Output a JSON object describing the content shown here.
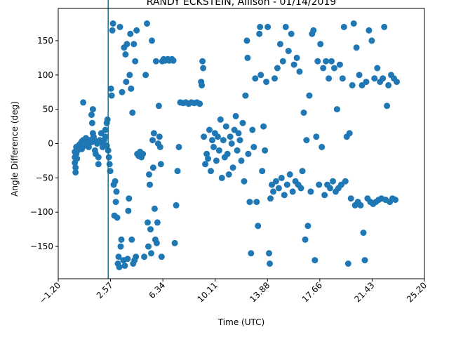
{
  "chart_data": {
    "type": "scatter",
    "title": "RANDY ECKSTEIN, Allison - 01/14/2019",
    "xlabel": "Time (UTC)",
    "ylabel": "Angle Difference (deg)",
    "xlim": [
      -1.2,
      25.2
    ],
    "ylim": [
      -197,
      197
    ],
    "xticks": [
      "-1.20",
      "2.57",
      "6.34",
      "10.11",
      "13.88",
      "17.66",
      "21.43",
      "25.20"
    ],
    "yticks": [
      -150,
      -100,
      -50,
      0,
      50,
      100,
      150
    ],
    "marker_color": "#1f77b4",
    "vline_x": 2.4,
    "vline_color": "#1f6f8b",
    "grid": false,
    "series": [
      {
        "points": [
          [
            0.0,
            -12
          ],
          [
            0.0,
            -20
          ],
          [
            0.0,
            -28
          ],
          [
            0.05,
            -35
          ],
          [
            0.05,
            -42
          ],
          [
            0.1,
            -15
          ],
          [
            0.1,
            -5
          ],
          [
            0.15,
            -22
          ],
          [
            0.2,
            -10
          ],
          [
            0.3,
            -2
          ],
          [
            0.4,
            0
          ],
          [
            0.5,
            3
          ],
          [
            0.5,
            -8
          ],
          [
            0.6,
            5
          ],
          [
            0.6,
            60
          ],
          [
            0.7,
            2
          ],
          [
            0.7,
            -3
          ],
          [
            0.8,
            8
          ],
          [
            0.9,
            0
          ],
          [
            1.0,
            -5
          ],
          [
            1.1,
            5
          ],
          [
            1.2,
            2
          ],
          [
            1.2,
            42
          ],
          [
            1.25,
            30
          ],
          [
            1.3,
            50
          ],
          [
            1.3,
            15
          ],
          [
            1.35,
            10
          ],
          [
            1.4,
            5
          ],
          [
            1.45,
            -10
          ],
          [
            1.5,
            -15
          ],
          [
            1.6,
            0
          ],
          [
            1.7,
            -20
          ],
          [
            1.7,
            -30
          ],
          [
            1.8,
            5
          ],
          [
            1.9,
            15
          ],
          [
            2.0,
            -5
          ],
          [
            2.0,
            0
          ],
          [
            2.1,
            5
          ],
          [
            2.2,
            10
          ],
          [
            2.2,
            20
          ],
          [
            2.3,
            -3
          ],
          [
            2.3,
            30
          ],
          [
            2.35,
            35
          ],
          [
            2.4,
            -10
          ],
          [
            2.45,
            -20
          ],
          [
            2.5,
            -30
          ],
          [
            2.55,
            -40
          ],
          [
            2.6,
            80
          ],
          [
            2.65,
            70
          ],
          [
            2.7,
            165
          ],
          [
            2.75,
            175
          ],
          [
            2.8,
            -60
          ],
          [
            2.85,
            -105
          ],
          [
            2.9,
            -55
          ],
          [
            2.95,
            -85
          ],
          [
            3.0,
            -70
          ],
          [
            3.05,
            -108
          ],
          [
            3.1,
            -175
          ],
          [
            3.15,
            -165
          ],
          [
            3.2,
            -180
          ],
          [
            3.25,
            170
          ],
          [
            3.3,
            -150
          ],
          [
            3.35,
            -140
          ],
          [
            3.4,
            75
          ],
          [
            3.5,
            -170
          ],
          [
            3.55,
            140
          ],
          [
            3.6,
            -178
          ],
          [
            3.65,
            130
          ],
          [
            3.7,
            90
          ],
          [
            3.75,
            145
          ],
          [
            3.8,
            -168
          ],
          [
            3.85,
            -98
          ],
          [
            3.9,
            -80
          ],
          [
            3.95,
            100
          ],
          [
            4.0,
            160
          ],
          [
            4.05,
            80
          ],
          [
            4.1,
            -140
          ],
          [
            4.15,
            45
          ],
          [
            4.2,
            -175
          ],
          [
            4.25,
            145
          ],
          [
            4.3,
            -170
          ],
          [
            4.35,
            120
          ],
          [
            4.4,
            -165
          ],
          [
            4.45,
            165
          ],
          [
            4.5,
            -15
          ],
          [
            4.6,
            -18
          ],
          [
            4.7,
            -12
          ],
          [
            4.8,
            -20
          ],
          [
            4.9,
            -15
          ],
          [
            5.0,
            -165
          ],
          [
            5.1,
            100
          ],
          [
            5.2,
            175
          ],
          [
            5.25,
            -115
          ],
          [
            5.3,
            -150
          ],
          [
            5.35,
            -45
          ],
          [
            5.4,
            -60
          ],
          [
            5.45,
            -125
          ],
          [
            5.5,
            -160
          ],
          [
            5.55,
            150
          ],
          [
            5.6,
            5
          ],
          [
            5.65,
            -35
          ],
          [
            5.7,
            15
          ],
          [
            5.75,
            -95
          ],
          [
            5.8,
            -140
          ],
          [
            5.85,
            120
          ],
          [
            5.9,
            -145
          ],
          [
            5.95,
            -115
          ],
          [
            6.0,
            0
          ],
          [
            6.05,
            55
          ],
          [
            6.1,
            10
          ],
          [
            6.15,
            -5
          ],
          [
            6.2,
            -30
          ],
          [
            6.25,
            -165
          ],
          [
            6.3,
            120
          ],
          [
            6.4,
            123
          ],
          [
            6.5,
            121
          ],
          [
            6.6,
            122
          ],
          [
            6.7,
            123
          ],
          [
            6.8,
            121
          ],
          [
            6.9,
            122
          ],
          [
            7.0,
            123
          ],
          [
            7.1,
            121
          ],
          [
            7.2,
            -145
          ],
          [
            7.3,
            -90
          ],
          [
            7.4,
            -40
          ],
          [
            7.5,
            -5
          ],
          [
            7.6,
            60
          ],
          [
            7.8,
            59
          ],
          [
            8.0,
            60
          ],
          [
            8.2,
            58
          ],
          [
            8.4,
            60
          ],
          [
            8.6,
            59
          ],
          [
            8.8,
            60
          ],
          [
            9.0,
            58
          ],
          [
            9.1,
            90
          ],
          [
            9.15,
            85
          ],
          [
            9.2,
            120
          ],
          [
            9.25,
            110
          ],
          [
            9.3,
            10
          ],
          [
            9.4,
            -30
          ],
          [
            9.5,
            -15
          ],
          [
            9.6,
            -22
          ],
          [
            9.7,
            20
          ],
          [
            9.8,
            -40
          ],
          [
            9.9,
            5
          ],
          [
            10.0,
            -5
          ],
          [
            10.1,
            15
          ],
          [
            10.2,
            -25
          ],
          [
            10.3,
            10
          ],
          [
            10.4,
            -10
          ],
          [
            10.5,
            35
          ],
          [
            10.6,
            -50
          ],
          [
            10.7,
            5
          ],
          [
            10.8,
            -20
          ],
          [
            10.9,
            25
          ],
          [
            11.0,
            -15
          ],
          [
            11.1,
            -45
          ],
          [
            11.2,
            10
          ],
          [
            11.3,
            0
          ],
          [
            11.4,
            -35
          ],
          [
            11.5,
            20
          ],
          [
            11.6,
            40
          ],
          [
            11.7,
            -10
          ],
          [
            11.8,
            15
          ],
          [
            11.9,
            5
          ],
          [
            12.0,
            -25
          ],
          [
            12.1,
            30
          ],
          [
            12.2,
            -55
          ],
          [
            12.3,
            70
          ],
          [
            12.4,
            150
          ],
          [
            12.45,
            125
          ],
          [
            12.5,
            -15
          ],
          [
            12.6,
            -85
          ],
          [
            12.7,
            -160
          ],
          [
            12.8,
            20
          ],
          [
            12.9,
            -5
          ],
          [
            13.0,
            95
          ],
          [
            13.1,
            -85
          ],
          [
            13.2,
            -120
          ],
          [
            13.3,
            160
          ],
          [
            13.35,
            170
          ],
          [
            13.4,
            100
          ],
          [
            13.5,
            -40
          ],
          [
            13.6,
            25
          ],
          [
            13.7,
            -10
          ],
          [
            13.8,
            90
          ],
          [
            13.9,
            170
          ],
          [
            14.0,
            -160
          ],
          [
            14.05,
            -175
          ],
          [
            14.1,
            -80
          ],
          [
            14.2,
            -60
          ],
          [
            14.3,
            -70
          ],
          [
            14.4,
            95
          ],
          [
            14.5,
            -55
          ],
          [
            14.6,
            110
          ],
          [
            14.7,
            -65
          ],
          [
            14.8,
            145
          ],
          [
            14.9,
            -50
          ],
          [
            15.0,
            120
          ],
          [
            15.1,
            -75
          ],
          [
            15.2,
            170
          ],
          [
            15.3,
            -60
          ],
          [
            15.4,
            135
          ],
          [
            15.5,
            -45
          ],
          [
            15.6,
            160
          ],
          [
            15.7,
            -70
          ],
          [
            15.8,
            115
          ],
          [
            15.9,
            -55
          ],
          [
            16.0,
            125
          ],
          [
            16.1,
            -60
          ],
          [
            16.2,
            105
          ],
          [
            16.3,
            -65
          ],
          [
            16.4,
            -40
          ],
          [
            16.5,
            45
          ],
          [
            16.6,
            -140
          ],
          [
            16.7,
            5
          ],
          [
            16.8,
            -120
          ],
          [
            16.9,
            70
          ],
          [
            17.0,
            -70
          ],
          [
            17.1,
            160
          ],
          [
            17.2,
            165
          ],
          [
            17.3,
            -170
          ],
          [
            17.4,
            10
          ],
          [
            17.5,
            120
          ],
          [
            17.6,
            -60
          ],
          [
            17.7,
            145
          ],
          [
            17.8,
            -5
          ],
          [
            17.9,
            110
          ],
          [
            18.0,
            -75
          ],
          [
            18.1,
            120
          ],
          [
            18.2,
            -60
          ],
          [
            18.3,
            95
          ],
          [
            18.4,
            -65
          ],
          [
            18.5,
            120
          ],
          [
            18.6,
            -55
          ],
          [
            18.7,
            110
          ],
          [
            18.8,
            -70
          ],
          [
            18.9,
            50
          ],
          [
            19.0,
            -65
          ],
          [
            19.1,
            115
          ],
          [
            19.2,
            -60
          ],
          [
            19.3,
            95
          ],
          [
            19.4,
            170
          ],
          [
            19.5,
            -55
          ],
          [
            19.6,
            10
          ],
          [
            19.7,
            -175
          ],
          [
            19.8,
            15
          ],
          [
            19.9,
            -80
          ],
          [
            20.0,
            85
          ],
          [
            20.1,
            175
          ],
          [
            20.2,
            -90
          ],
          [
            20.3,
            140
          ],
          [
            20.4,
            -85
          ],
          [
            20.5,
            100
          ],
          [
            20.6,
            -90
          ],
          [
            20.7,
            85
          ],
          [
            20.8,
            -130
          ],
          [
            20.9,
            -170
          ],
          [
            21.0,
            90
          ],
          [
            21.1,
            -80
          ],
          [
            21.2,
            165
          ],
          [
            21.3,
            -85
          ],
          [
            21.4,
            150
          ],
          [
            21.5,
            -88
          ],
          [
            21.6,
            95
          ],
          [
            21.7,
            -85
          ],
          [
            21.8,
            110
          ],
          [
            21.9,
            -82
          ],
          [
            22.0,
            90
          ],
          [
            22.1,
            -80
          ],
          [
            22.2,
            95
          ],
          [
            22.3,
            170
          ],
          [
            22.4,
            -82
          ],
          [
            22.5,
            55
          ],
          [
            22.6,
            85
          ],
          [
            22.7,
            -85
          ],
          [
            22.8,
            100
          ],
          [
            22.9,
            -80
          ],
          [
            23.0,
            95
          ],
          [
            23.1,
            -82
          ],
          [
            23.2,
            90
          ]
        ]
      }
    ]
  }
}
